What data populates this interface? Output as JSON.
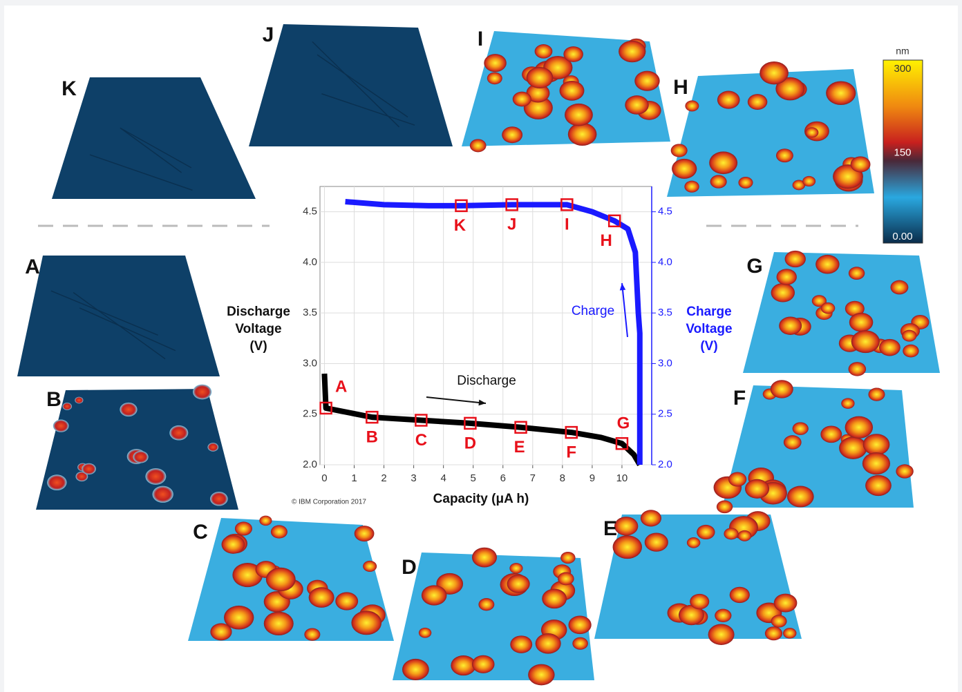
{
  "chart_data": {
    "type": "line",
    "x_label": "Capacity (μA h)",
    "y_label": [
      "Discharge",
      "Voltage",
      "(V)"
    ],
    "y2_label": [
      "Charge",
      "Voltage",
      "(V)"
    ],
    "credit": "© IBM Corporation 2017",
    "annotations": [
      {
        "text": "Discharge",
        "color": "#111111"
      },
      {
        "text": "Charge",
        "color": "#1a1aff"
      }
    ],
    "xlim": [
      -0.15,
      11
    ],
    "ylim": [
      2.0,
      4.75
    ],
    "y2lim": [
      2.0,
      4.75
    ],
    "xticks": [
      0,
      1,
      2,
      3,
      4,
      5,
      6,
      7,
      8,
      9,
      10
    ],
    "yticks": [
      {
        "value": 2,
        "label": "2.0"
      },
      {
        "value": 2.5,
        "label": "2.5"
      },
      {
        "value": 3,
        "label": "3.0"
      },
      {
        "value": 3.5,
        "label": "3.5"
      },
      {
        "value": 4,
        "label": "4.0"
      },
      {
        "value": 4.5,
        "label": "4.5"
      }
    ],
    "y2ticks": [
      {
        "value": 2,
        "label": "2.0"
      },
      {
        "value": 2.5,
        "label": "2.5"
      },
      {
        "value": 3,
        "label": "3.0"
      },
      {
        "value": 3.5,
        "label": "3.5"
      },
      {
        "value": 4,
        "label": "4.0"
      },
      {
        "value": 4.5,
        "label": "4.5"
      }
    ],
    "grid": true,
    "series": [
      {
        "name": "Discharge",
        "color": "#000000",
        "x": [
          0,
          0.05,
          1.6,
          3.25,
          4.9,
          6.6,
          8.3,
          9.3,
          10.0,
          10.4,
          10.6
        ],
        "values": [
          2.9,
          2.56,
          2.47,
          2.44,
          2.41,
          2.37,
          2.32,
          2.27,
          2.21,
          2.1,
          2.0
        ]
      },
      {
        "name": "Charge",
        "color": "#1a1aff",
        "axis": "y2",
        "x": [
          0.7,
          2,
          3.5,
          4.6,
          6.3,
          8.15,
          9.0,
          9.75,
          10.2,
          10.45,
          10.55,
          10.6,
          10.6
        ],
        "values": [
          4.6,
          4.57,
          4.56,
          4.56,
          4.57,
          4.57,
          4.5,
          4.41,
          4.33,
          4.1,
          3.5,
          3.3,
          2.0
        ]
      }
    ],
    "points": [
      {
        "label": "A",
        "x": 0.05,
        "y": 2.56
      },
      {
        "label": "B",
        "x": 1.6,
        "y": 2.47
      },
      {
        "label": "C",
        "x": 3.25,
        "y": 2.44
      },
      {
        "label": "D",
        "x": 4.9,
        "y": 2.41
      },
      {
        "label": "E",
        "x": 6.6,
        "y": 2.37
      },
      {
        "label": "F",
        "x": 8.3,
        "y": 2.32
      },
      {
        "label": "G",
        "x": 10.0,
        "y": 2.21
      },
      {
        "label": "H",
        "x": 9.75,
        "y": 4.41
      },
      {
        "label": "I",
        "x": 8.15,
        "y": 4.57
      },
      {
        "label": "J",
        "x": 6.3,
        "y": 4.57
      },
      {
        "label": "K",
        "x": 4.6,
        "y": 4.56
      }
    ],
    "panels": [
      "K",
      "J",
      "I",
      "H",
      "A",
      "B",
      "C",
      "D",
      "E",
      "F",
      "G"
    ],
    "colorbar": {
      "unit": "nm",
      "ticks": [
        300,
        150,
        {
          "value": 0,
          "label": "0.00"
        }
      ]
    }
  }
}
